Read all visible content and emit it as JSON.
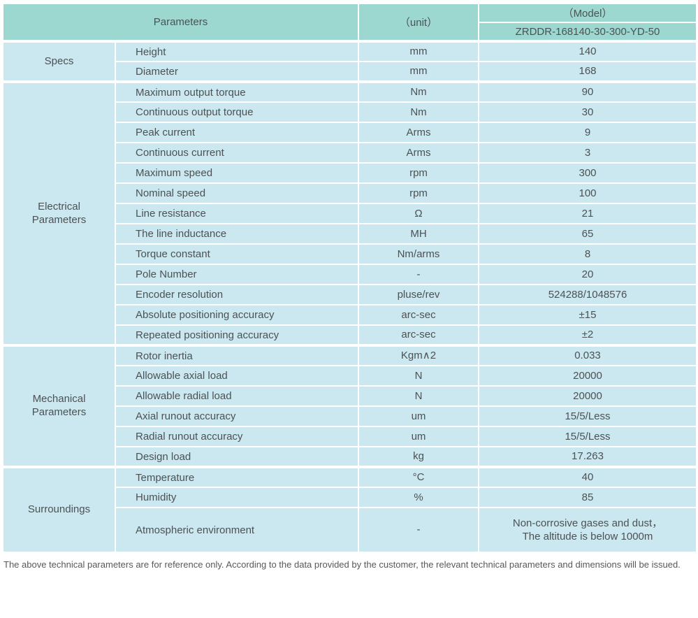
{
  "header": {
    "parameters_label": "Parameters",
    "unit_label": "（unit）",
    "model_label": "（Model）",
    "model_value": "ZRDDR-168140-30-300-YD-50"
  },
  "sections": [
    {
      "name": "Specs",
      "rows": [
        {
          "param": "Height",
          "unit": "mm",
          "value": "140"
        },
        {
          "param": "Diameter",
          "unit": "mm",
          "value": "168"
        }
      ]
    },
    {
      "name": "Electrical Parameters",
      "rows": [
        {
          "param": "Maximum output torque",
          "unit": "Nm",
          "value": "90"
        },
        {
          "param": "Continuous output torque",
          "unit": "Nm",
          "value": "30"
        },
        {
          "param": "Peak current",
          "unit": "Arms",
          "value": "9"
        },
        {
          "param": "Continuous current",
          "unit": "Arms",
          "value": "3"
        },
        {
          "param": "Maximum speed",
          "unit": "rpm",
          "value": "300"
        },
        {
          "param": "Nominal speed",
          "unit": "rpm",
          "value": "100"
        },
        {
          "param": "Line resistance",
          "unit": "Ω",
          "value": "21"
        },
        {
          "param": "The line inductance",
          "unit": "MH",
          "value": "65"
        },
        {
          "param": "Torque constant",
          "unit": "Nm/arms",
          "value": "8"
        },
        {
          "param": "Pole Number",
          "unit": "-",
          "value": "20"
        },
        {
          "param": "Encoder resolution",
          "unit": "pluse/rev",
          "value": "524288/1048576"
        },
        {
          "param": "Absolute positioning accuracy",
          "unit": "arc-sec",
          "value": "±15"
        },
        {
          "param": "Repeated positioning accuracy",
          "unit": "arc-sec",
          "value": "±2"
        }
      ]
    },
    {
      "name": "Mechanical Parameters",
      "rows": [
        {
          "param": "Rotor inertia",
          "unit": "Kgm∧2",
          "value": "0.033"
        },
        {
          "param": "Allowable axial load",
          "unit": "N",
          "value": "20000"
        },
        {
          "param": "Allowable radial load",
          "unit": "N",
          "value": "20000"
        },
        {
          "param": "Axial runout accuracy",
          "unit": "um",
          "value": "15/5/Less"
        },
        {
          "param": "Radial runout accuracy",
          "unit": "um",
          "value": "15/5/Less"
        },
        {
          "param": "Design load",
          "unit": "kg",
          "value": "17.263"
        }
      ]
    },
    {
      "name": "Surroundings",
      "rows": [
        {
          "param": "Temperature",
          "unit": "°C",
          "value": "40"
        },
        {
          "param": "Humidity",
          "unit": "%",
          "value": "85"
        },
        {
          "param": "Atmospheric environment",
          "unit": "-",
          "value": "Non-corrosive gases and dust，\nThe altitude is below 1000m"
        }
      ]
    }
  ],
  "footer": {
    "note": "The above technical parameters are for reference only. According to the data provided by the customer, the relevant technical parameters and dimensions will be issued."
  },
  "colors": {
    "header_bg": "#9cd7d0",
    "cell_bg": "#cbe7ef",
    "border": "#ffffff",
    "text": "#4c5254"
  }
}
